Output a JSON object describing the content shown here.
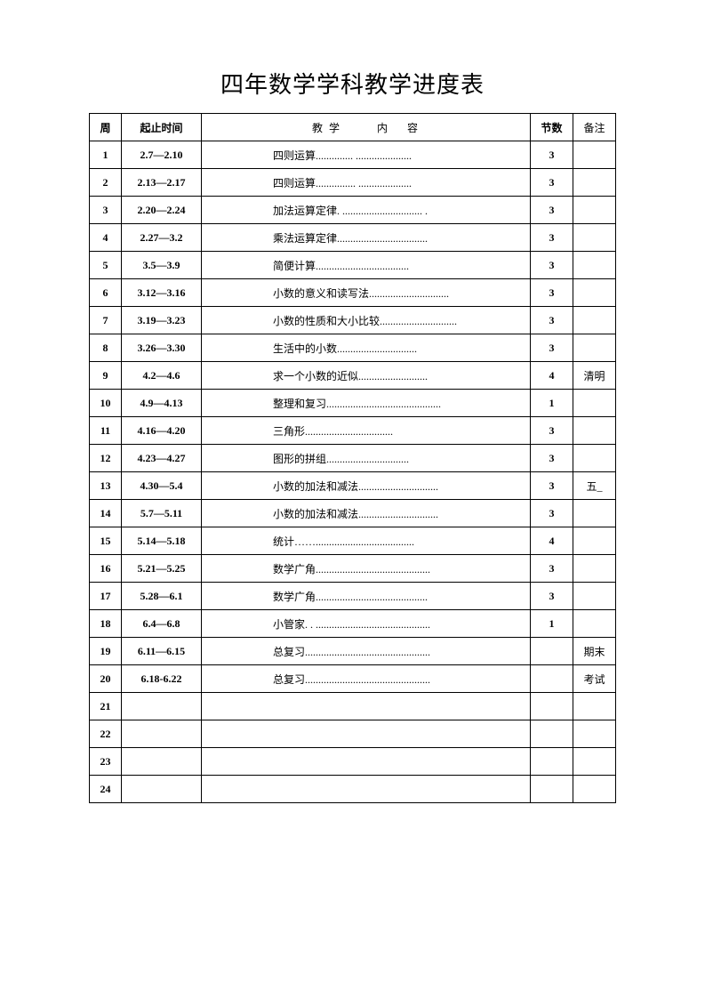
{
  "title": "四年数学学科教学进度表",
  "headers": {
    "week": "周",
    "time": "起止时间",
    "content_part1": "教 学",
    "content_part2": "内",
    "content_part3": "容",
    "count": "节数",
    "note": "备注"
  },
  "rows": [
    {
      "week": "1",
      "time": "2.7—2.10",
      "content": "四则运算",
      "dots": ".............. .....................",
      "count": "3",
      "note": ""
    },
    {
      "week": "2",
      "time": "2.13—2.17",
      "content": "四则运算",
      "dots": "............... ....................",
      "count": "3",
      "note": ""
    },
    {
      "week": "3",
      "time": "2.20—2.24",
      "content": "加法运算定律",
      "dots": ". .............................. .",
      "count": "3",
      "note": ""
    },
    {
      "week": "4",
      "time": "2.27—3.2",
      "content": "乘法运算定律",
      "dots": "..................................",
      "count": "3",
      "note": ""
    },
    {
      "week": "5",
      "time": "3.5—3.9",
      "content": "简便计算",
      "dots": "...................................",
      "count": "3",
      "note": ""
    },
    {
      "week": "6",
      "time": "3.12—3.16",
      "content": "小数的意义和读写法",
      "dots": "..............................",
      "count": "3",
      "note": ""
    },
    {
      "week": "7",
      "time": "3.19—3.23",
      "content": "小数的性质和大小比较",
      "dots": ".............................",
      "count": "3",
      "note": ""
    },
    {
      "week": "8",
      "time": "3.26—3.30",
      "content": "生活中的小数",
      "dots": "..............................",
      "count": "3",
      "note": ""
    },
    {
      "week": "9",
      "time": "4.2—4.6",
      "content": "求一个小数的近似",
      "dots": "..........................",
      "count": "4",
      "note": "清明"
    },
    {
      "week": "10",
      "time": "4.9—4.13",
      "content": "整理和复习",
      "dots": "...........................................",
      "count": "1",
      "note": ""
    },
    {
      "week": "11",
      "time": "4.16—4.20",
      "content": "三角形",
      "dots": ".................................",
      "count": "3",
      "note": ""
    },
    {
      "week": "12",
      "time": "4.23—4.27",
      "content": "图形的拼组",
      "dots": "...............................",
      "count": "3",
      "note": ""
    },
    {
      "week": "13",
      "time": "4.30—5.4",
      "content": "小数的加法和减法",
      "dots": "..............................",
      "count": "3",
      "note": "五_"
    },
    {
      "week": "14",
      "time": "5.7—5.11",
      "content": "小数的加法和减法",
      "dots": "..............................",
      "count": "3",
      "note": ""
    },
    {
      "week": "15",
      "time": "5.14—5.18",
      "content": "统计……",
      "dots": ".....................................",
      "count": "4",
      "note": ""
    },
    {
      "week": "16",
      "time": "5.21—5.25",
      "content": "数学广角",
      "dots": "...........................................",
      "count": "3",
      "note": ""
    },
    {
      "week": "17",
      "time": "5.28—6.1",
      "content": "数学广角",
      "dots": "..........................................",
      "count": "3",
      "note": ""
    },
    {
      "week": "18",
      "time": "6.4—6.8",
      "content": "小管家",
      "dots": ". . ...........................................",
      "count": "1",
      "note": ""
    },
    {
      "week": "19",
      "time": "6.11—6.15",
      "content": "总复习",
      "dots": "...............................................",
      "count": "",
      "note": "期末"
    },
    {
      "week": "20",
      "time": "6.18-6.22",
      "content": "总复习",
      "dots": "...............................................",
      "count": "",
      "note": "考试"
    },
    {
      "week": "21",
      "time": "",
      "content": "",
      "dots": "",
      "count": "",
      "note": ""
    },
    {
      "week": "22",
      "time": "",
      "content": "",
      "dots": "",
      "count": "",
      "note": ""
    },
    {
      "week": "23",
      "time": "",
      "content": "",
      "dots": "",
      "count": "",
      "note": ""
    },
    {
      "week": "24",
      "time": "",
      "content": "",
      "dots": "",
      "count": "",
      "note": ""
    }
  ]
}
